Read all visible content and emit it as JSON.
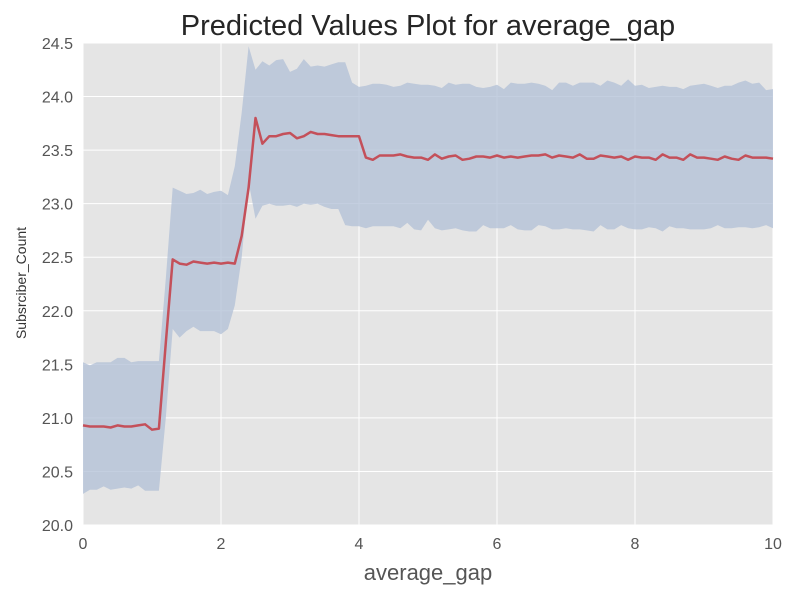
{
  "chart_data": {
    "type": "line",
    "title": "Predicted Values Plot for average_gap",
    "xlabel": "average_gap",
    "ylabel": "Subsrciber_Count",
    "xlim": [
      0,
      10
    ],
    "ylim": [
      20.0,
      24.5
    ],
    "xticks": [
      0,
      2,
      4,
      6,
      8,
      10
    ],
    "xtick_labels": [
      "0",
      "2",
      "4",
      "6",
      "8",
      "10"
    ],
    "yticks": [
      20.0,
      20.5,
      21.0,
      21.5,
      22.0,
      22.5,
      23.0,
      23.5,
      24.0,
      24.5
    ],
    "ytick_labels": [
      "20.0",
      "20.5",
      "21.0",
      "21.5",
      "22.0",
      "22.5",
      "23.0",
      "23.5",
      "24.0",
      "24.5"
    ],
    "grid": true,
    "colors": {
      "line": "#c4505a",
      "band": "#b0bfd6",
      "plot_background": "#e5e5e5",
      "grid": "#ffffff"
    },
    "series": [
      {
        "x": [
          0.0,
          0.1,
          0.2,
          0.3,
          0.4,
          0.5,
          0.6,
          0.7,
          0.8,
          0.9,
          1.0,
          1.1,
          1.2,
          1.3,
          1.4,
          1.5,
          1.6,
          1.7,
          1.8,
          1.9,
          2.0,
          2.1,
          2.2,
          2.3,
          2.4,
          2.5,
          2.6,
          2.7,
          2.8,
          2.9,
          3.0,
          3.1,
          3.2,
          3.3,
          3.4,
          3.5,
          3.6,
          3.7,
          3.8,
          3.9,
          4.0,
          4.1,
          4.2,
          4.3,
          4.4,
          4.5,
          4.6,
          4.7,
          4.8,
          4.9,
          5.0,
          5.1,
          5.2,
          5.3,
          5.4,
          5.5,
          5.6,
          5.7,
          5.8,
          5.9,
          6.0,
          6.1,
          6.2,
          6.3,
          6.4,
          6.5,
          6.6,
          6.7,
          6.8,
          6.9,
          7.0,
          7.1,
          7.2,
          7.3,
          7.4,
          7.5,
          7.6,
          7.7,
          7.8,
          7.9,
          8.0,
          8.1,
          8.2,
          8.3,
          8.4,
          8.5,
          8.6,
          8.7,
          8.8,
          8.9,
          9.0,
          9.1,
          9.2,
          9.3,
          9.4,
          9.5,
          9.6,
          9.7,
          9.8,
          9.9,
          10.0
        ],
        "y": [
          20.93,
          20.92,
          20.92,
          20.92,
          20.91,
          20.93,
          20.92,
          20.92,
          20.93,
          20.94,
          20.89,
          20.9,
          21.7,
          22.48,
          22.44,
          22.43,
          22.46,
          22.45,
          22.44,
          22.45,
          22.44,
          22.45,
          22.44,
          22.7,
          23.15,
          23.8,
          23.56,
          23.63,
          23.63,
          23.65,
          23.66,
          23.61,
          23.63,
          23.67,
          23.65,
          23.65,
          23.64,
          23.63,
          23.63,
          23.63,
          23.63,
          23.43,
          23.41,
          23.45,
          23.45,
          23.45,
          23.46,
          23.44,
          23.43,
          23.43,
          23.41,
          23.46,
          23.42,
          23.44,
          23.45,
          23.41,
          23.42,
          23.44,
          23.44,
          23.43,
          23.45,
          23.43,
          23.44,
          23.43,
          23.44,
          23.45,
          23.45,
          23.46,
          23.43,
          23.45,
          23.44,
          23.43,
          23.46,
          23.42,
          23.42,
          23.45,
          23.44,
          23.43,
          23.44,
          23.41,
          23.44,
          23.43,
          23.43,
          23.41,
          23.46,
          23.43,
          23.43,
          23.41,
          23.46,
          23.43,
          23.43,
          23.42,
          23.41,
          23.44,
          23.42,
          23.41,
          23.45,
          23.43,
          23.43,
          23.43,
          23.42
        ],
        "lower": [
          20.29,
          20.33,
          20.33,
          20.36,
          20.33,
          20.34,
          20.35,
          20.34,
          20.37,
          20.32,
          20.32,
          20.32,
          21.0,
          21.83,
          21.75,
          21.81,
          21.85,
          21.81,
          21.81,
          21.81,
          21.78,
          21.83,
          22.05,
          22.5,
          23.2,
          22.86,
          22.98,
          23.0,
          22.98,
          22.98,
          22.99,
          22.97,
          23.0,
          22.99,
          23.0,
          22.97,
          22.95,
          22.95,
          22.8,
          22.79,
          22.79,
          22.77,
          22.79,
          22.79,
          22.79,
          22.79,
          22.77,
          22.82,
          22.76,
          22.75,
          22.85,
          22.77,
          22.75,
          22.76,
          22.77,
          22.75,
          22.74,
          22.74,
          22.8,
          22.77,
          22.77,
          22.77,
          22.8,
          22.76,
          22.75,
          22.75,
          22.8,
          22.79,
          22.76,
          22.76,
          22.77,
          22.76,
          22.76,
          22.75,
          22.74,
          22.8,
          22.76,
          22.76,
          22.8,
          22.77,
          22.76,
          22.76,
          22.78,
          22.77,
          22.74,
          22.79,
          22.77,
          22.77,
          22.76,
          22.76,
          22.76,
          22.77,
          22.8,
          22.77,
          22.77,
          22.78,
          22.78,
          22.77,
          22.78,
          22.8,
          22.77
        ],
        "upper": [
          21.52,
          21.49,
          21.52,
          21.52,
          21.52,
          21.56,
          21.56,
          21.52,
          21.53,
          21.53,
          21.53,
          21.53,
          22.3,
          23.15,
          23.12,
          23.09,
          23.1,
          23.13,
          23.09,
          23.11,
          23.12,
          23.08,
          23.35,
          23.85,
          24.47,
          24.25,
          24.33,
          24.29,
          24.34,
          24.35,
          24.23,
          24.26,
          24.35,
          24.28,
          24.29,
          24.28,
          24.3,
          24.32,
          24.32,
          24.13,
          24.09,
          24.1,
          24.12,
          24.12,
          24.11,
          24.09,
          24.1,
          24.13,
          24.12,
          24.11,
          24.11,
          24.1,
          24.08,
          24.13,
          24.11,
          24.12,
          24.12,
          24.09,
          24.08,
          24.09,
          24.11,
          24.07,
          24.13,
          24.12,
          24.12,
          24.13,
          24.12,
          24.1,
          24.06,
          24.13,
          24.13,
          24.1,
          24.13,
          24.13,
          24.13,
          24.1,
          24.15,
          24.13,
          24.1,
          24.16,
          24.1,
          24.11,
          24.08,
          24.09,
          24.1,
          24.09,
          24.09,
          24.07,
          24.1,
          24.11,
          24.12,
          24.1,
          24.08,
          24.1,
          24.1,
          24.13,
          24.15,
          24.12,
          24.13,
          24.06,
          24.07
        ]
      }
    ]
  }
}
